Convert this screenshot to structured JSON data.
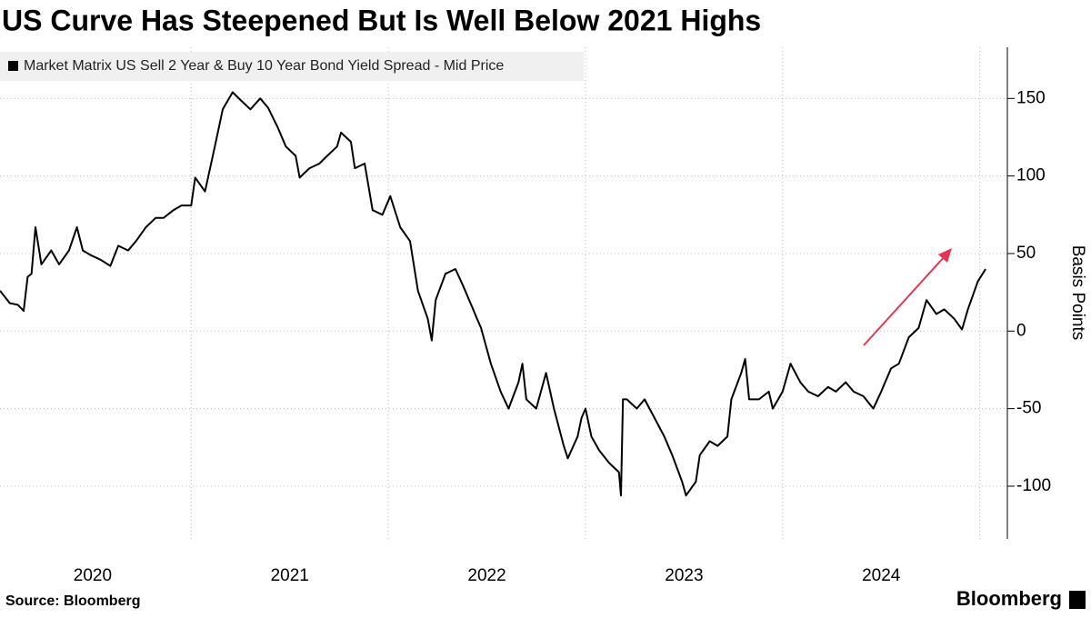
{
  "chart_data": {
    "type": "line",
    "title": "US Curve Has Steepened But Is Well Below 2021 Highs",
    "y_label": "Basis Points",
    "source": "Source: Bloomberg",
    "brand": "Bloomberg",
    "x": [
      2020.03,
      2020.08,
      2020.12,
      2020.15,
      2020.17,
      2020.19,
      2020.21,
      2020.24,
      2020.29,
      2020.33,
      2020.38,
      2020.42,
      2020.45,
      2020.49,
      2020.54,
      2020.59,
      2020.63,
      2020.68,
      2020.72,
      2020.77,
      2020.82,
      2020.86,
      2020.91,
      2020.95,
      2021.0,
      2021.02,
      2021.07,
      2021.12,
      2021.16,
      2021.21,
      2021.25,
      2021.3,
      2021.35,
      2021.39,
      2021.44,
      2021.48,
      2021.53,
      2021.55,
      2021.6,
      2021.65,
      2021.69,
      2021.74,
      2021.76,
      2021.81,
      2021.83,
      2021.88,
      2021.92,
      2021.97,
      2022.01,
      2022.06,
      2022.11,
      2022.15,
      2022.2,
      2022.22,
      2022.24,
      2022.29,
      2022.34,
      2022.38,
      2022.43,
      2022.45,
      2022.47,
      2022.52,
      2022.57,
      2022.61,
      2022.66,
      2022.68,
      2022.7,
      2022.75,
      2022.8,
      2022.84,
      2022.89,
      2022.91,
      2022.96,
      2022.98,
      2023.0,
      2023.03,
      2023.07,
      2023.12,
      2023.17,
      2023.18,
      2023.19,
      2023.21,
      2023.26,
      2023.3,
      2023.35,
      2023.4,
      2023.44,
      2023.49,
      2023.51,
      2023.56,
      2023.58,
      2023.63,
      2023.67,
      2023.72,
      2023.74,
      2023.79,
      2023.81,
      2023.83,
      2023.88,
      2023.93,
      2023.95,
      2024.0,
      2024.04,
      2024.09,
      2024.13,
      2024.18,
      2024.23,
      2024.27,
      2024.32,
      2024.36,
      2024.41,
      2024.46,
      2024.5,
      2024.55,
      2024.59,
      2024.64,
      2024.69,
      2024.73,
      2024.78,
      2024.82,
      2024.87,
      2024.91,
      2024.94,
      2024.99,
      2025.03
    ],
    "series": [
      {
        "name": "Market Matrix US Sell 2 Year & Buy 10 Year Bond Yield Spread - Mid Price",
        "color": "#000000",
        "values": [
          26,
          18,
          17,
          13,
          35,
          37,
          67,
          43,
          52,
          43,
          52,
          67,
          52,
          49,
          46,
          42,
          55,
          52,
          58,
          67,
          73,
          73,
          78,
          81,
          81,
          99,
          90,
          119,
          143,
          154,
          149,
          143,
          150,
          144,
          131,
          119,
          113,
          99,
          105,
          108,
          113,
          119,
          128,
          122,
          105,
          108,
          78,
          75,
          87,
          67,
          58,
          26,
          8,
          -6,
          20,
          37,
          40,
          29,
          14,
          8,
          2,
          -21,
          -39,
          -50,
          -33,
          -21,
          -44,
          -50,
          -27,
          -50,
          -74,
          -82,
          -68,
          -56,
          -50,
          -68,
          -77,
          -85,
          -91,
          -106,
          -44,
          -44,
          -50,
          -44,
          -56,
          -68,
          -80,
          -97,
          -106,
          -97,
          -80,
          -71,
          -74,
          -68,
          -44,
          -27,
          -18,
          -44,
          -44,
          -39,
          -50,
          -39,
          -21,
          -33,
          -39,
          -42,
          -36,
          -39,
          -33,
          -39,
          -42,
          -50,
          -39,
          -24,
          -21,
          -4,
          2,
          20,
          11,
          14,
          8,
          1,
          14,
          32,
          40
        ]
      }
    ],
    "xlim": [
      2020.03,
      2025.14
    ],
    "xticks": [
      {
        "value": 2020.5,
        "label": "2020"
      },
      {
        "value": 2021.5,
        "label": "2021"
      },
      {
        "value": 2022.5,
        "label": "2022"
      },
      {
        "value": 2023.5,
        "label": "2023"
      },
      {
        "value": 2024.5,
        "label": "2024"
      }
    ],
    "xgrid": [
      2021,
      2022,
      2023,
      2024,
      2025
    ],
    "ylim": [
      -134,
      183
    ],
    "yticks": [
      -100,
      -50,
      0,
      50,
      100,
      150
    ],
    "grid": true
  }
}
